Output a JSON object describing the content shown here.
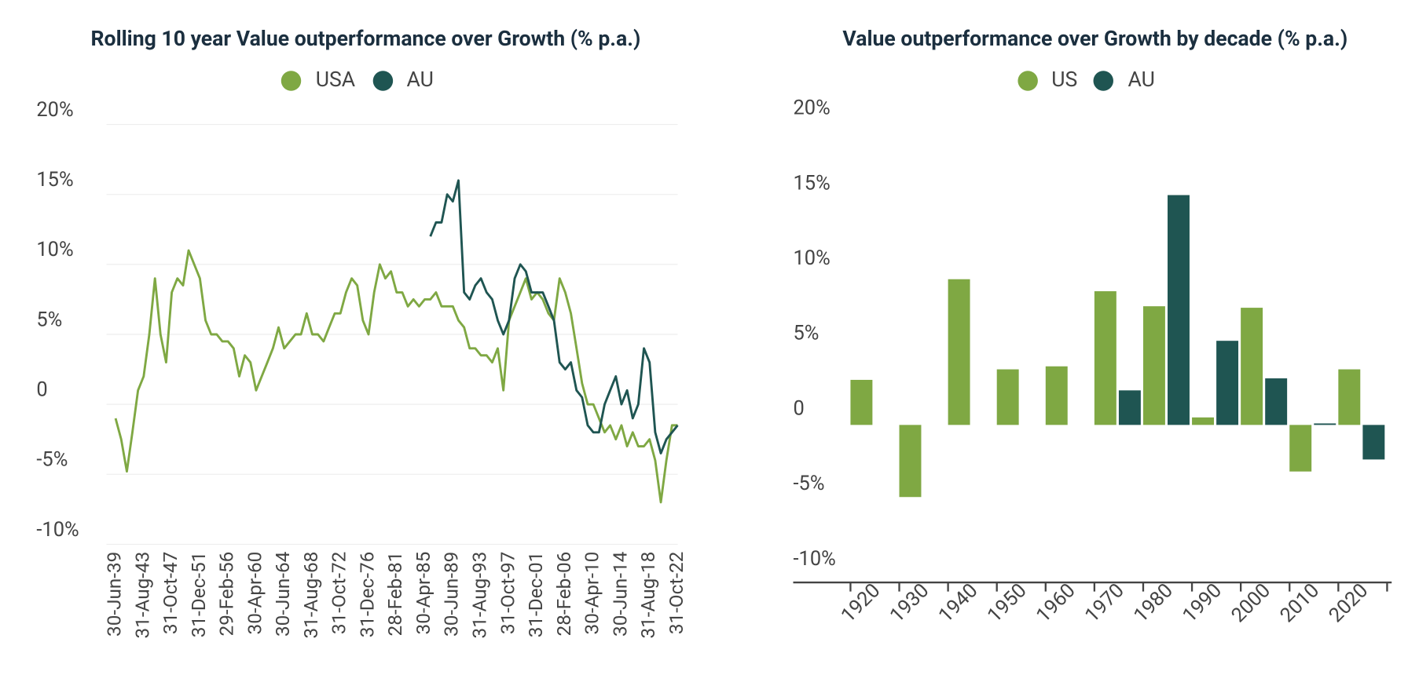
{
  "chart_data": [
    {
      "type": "line",
      "title": "Rolling 10 year Value outperformance over Growth (% p.a.)",
      "categories": [
        "30-Jun-39",
        null,
        null,
        null,
        null,
        "31-Aug-43",
        null,
        null,
        null,
        null,
        "31-Oct-47",
        null,
        null,
        null,
        null,
        "31-Dec-51",
        null,
        null,
        null,
        null,
        "29-Feb-56",
        null,
        null,
        null,
        null,
        "30-Apr-60",
        null,
        null,
        null,
        null,
        "30-Jun-64",
        null,
        null,
        null,
        null,
        "31-Aug-68",
        null,
        null,
        null,
        null,
        "31-Oct-72",
        null,
        null,
        null,
        null,
        "31-Dec-76",
        null,
        null,
        null,
        null,
        "28-Feb-81",
        null,
        null,
        null,
        null,
        "30-Apr-85",
        null,
        null,
        null,
        null,
        "30-Jun-89",
        null,
        null,
        null,
        null,
        "31-Aug-93",
        null,
        null,
        null,
        null,
        "31-Oct-97",
        null,
        null,
        null,
        null,
        "31-Dec-01",
        null,
        null,
        null,
        null,
        "28-Feb-06",
        null,
        null,
        null,
        null,
        "30-Apr-10",
        null,
        null,
        null,
        null,
        "30-Jun-14",
        null,
        null,
        null,
        null,
        "31-Aug-18",
        null,
        null,
        null,
        null,
        "31-Oct-22"
      ],
      "series": [
        {
          "name": "USA",
          "color": "#7fa843",
          "values": [
            -1,
            -2.5,
            -4.8,
            -2,
            1,
            2,
            5,
            9,
            5,
            3,
            8,
            9,
            8.5,
            11,
            10,
            9,
            6,
            5,
            5,
            4.5,
            4.5,
            4,
            2,
            3.5,
            3,
            1,
            2,
            3,
            4,
            5.5,
            4,
            4.5,
            5,
            5,
            6.5,
            5,
            5,
            4.5,
            5.5,
            6.5,
            6.5,
            8,
            9,
            8.5,
            6,
            5,
            8,
            10,
            9,
            9.5,
            8,
            8,
            7,
            7.5,
            7,
            7.5,
            7.5,
            8,
            7,
            7,
            7,
            6,
            5.5,
            4,
            4,
            3.5,
            3.5,
            3,
            4,
            1,
            6,
            7,
            8,
            9,
            7.5,
            8,
            7.5,
            6.5,
            6,
            9,
            8,
            6.5,
            4,
            1.5,
            0,
            0,
            -1,
            -2,
            -1.5,
            -2.5,
            -1.5,
            -3,
            -2,
            -3,
            -3,
            -2.5,
            -4,
            -7,
            -4,
            -1.5,
            -1.5
          ]
        },
        {
          "name": "AU",
          "color": "#1f5552",
          "values": [
            null,
            null,
            null,
            null,
            null,
            null,
            null,
            null,
            null,
            null,
            null,
            null,
            null,
            null,
            null,
            null,
            null,
            null,
            null,
            null,
            null,
            null,
            null,
            null,
            null,
            null,
            null,
            null,
            null,
            null,
            null,
            null,
            null,
            null,
            null,
            null,
            null,
            null,
            null,
            null,
            null,
            null,
            null,
            null,
            null,
            null,
            null,
            null,
            null,
            null,
            null,
            null,
            null,
            null,
            null,
            null,
            12,
            13,
            13,
            15,
            14.5,
            16,
            8,
            7.5,
            8.5,
            9,
            8,
            7.5,
            6,
            5,
            6,
            9,
            10,
            9.5,
            8,
            8,
            8,
            7,
            6,
            3,
            2.5,
            3,
            1,
            0.5,
            -1.5,
            -2,
            -2,
            0,
            1,
            2,
            0,
            1,
            -1,
            0,
            4,
            3,
            -2,
            -3.5,
            -2.5,
            -2,
            -1.5
          ]
        }
      ],
      "ylim": [
        -10,
        20
      ],
      "yticks": [
        {
          "value": -10,
          "label": "-10%"
        },
        {
          "value": -5,
          "label": "-5%"
        },
        0,
        {
          "value": 5,
          "label": "5%"
        },
        {
          "value": 10,
          "label": "10%"
        },
        {
          "value": 15,
          "label": "15%"
        },
        {
          "value": 20,
          "label": "20%"
        }
      ],
      "grid": true
    },
    {
      "type": "bar",
      "title": "Value outperformance over Growth by decade (% p.a.)",
      "categories": [
        "1920",
        "1930",
        "1940",
        "1950",
        "1960",
        "1970",
        "1980",
        "1990",
        "2000",
        "2010",
        "2020"
      ],
      "series": [
        {
          "name": "US",
          "color": "#7fa843",
          "values": [
            3.0,
            -4.8,
            9.7,
            3.7,
            3.9,
            8.9,
            7.9,
            0.5,
            7.8,
            -3.1,
            3.7
          ]
        },
        {
          "name": "AU",
          "color": "#1f5552",
          "values": [
            null,
            null,
            null,
            null,
            null,
            2.3,
            15.3,
            5.6,
            3.1,
            0.1,
            -2.3
          ]
        }
      ],
      "ylim": [
        -10,
        20
      ],
      "yticks": [
        {
          "value": -10,
          "label": "-10%"
        },
        {
          "value": -5,
          "label": "-5%"
        },
        0,
        {
          "value": 5,
          "label": "5%"
        },
        {
          "value": 10,
          "label": "10%"
        },
        {
          "value": 15,
          "label": "15%"
        },
        {
          "value": 20,
          "label": "20%"
        }
      ],
      "grid": false
    }
  ]
}
